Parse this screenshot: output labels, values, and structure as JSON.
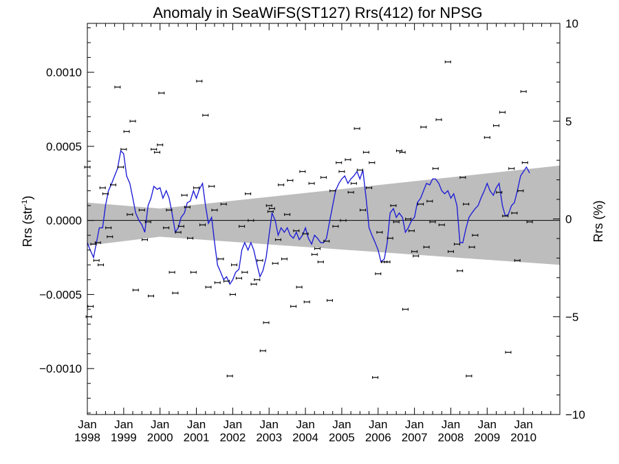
{
  "chart_data": {
    "type": "scatter",
    "title": "Anomaly in SeaWiFS(ST127) Rrs(412) for NPSG",
    "ylabel_main": "Rrs (str",
    "ylabel_sup": "-1",
    "ylabel_close": ")",
    "ylabel_right": "Rrs (%)",
    "xlim": [
      1998.0,
      2011.0
    ],
    "ylim": [
      -0.00131,
      0.00133
    ],
    "ylim_right": [
      -10,
      10
    ],
    "x_ticks": [
      {
        "x": 1998,
        "month": "Jan",
        "year": "1998"
      },
      {
        "x": 1999,
        "month": "Jan",
        "year": "1999"
      },
      {
        "x": 2000,
        "month": "Jan",
        "year": "2000"
      },
      {
        "x": 2001,
        "month": "Jan",
        "year": "2001"
      },
      {
        "x": 2002,
        "month": "Jan",
        "year": "2002"
      },
      {
        "x": 2003,
        "month": "Jan",
        "year": "2003"
      },
      {
        "x": 2004,
        "month": "Jan",
        "year": "2004"
      },
      {
        "x": 2005,
        "month": "Jan",
        "year": "2005"
      },
      {
        "x": 2006,
        "month": "Jan",
        "year": "2006"
      },
      {
        "x": 2007,
        "month": "Jan",
        "year": "2007"
      },
      {
        "x": 2008,
        "month": "Jan",
        "year": "2008"
      },
      {
        "x": 2009,
        "month": "Jan",
        "year": "2009"
      },
      {
        "x": 2010,
        "month": "Jan",
        "year": "2010"
      }
    ],
    "y_ticks_left": [
      {
        "v": 0.001,
        "label": "0.0010"
      },
      {
        "v": 0.0005,
        "label": "0.0005"
      },
      {
        "v": 0.0,
        "label": "0.0000"
      },
      {
        "v": -0.0005,
        "label": "−0.0005"
      },
      {
        "v": -0.001,
        "label": "−0.0010"
      }
    ],
    "y_ticks_right": [
      {
        "v": 10,
        "label": "10"
      },
      {
        "v": 5,
        "label": "5"
      },
      {
        "v": 0,
        "label": "0"
      },
      {
        "v": -5,
        "label": "−5"
      },
      {
        "v": -10,
        "label": "−10"
      }
    ],
    "band": {
      "upper": [
        [
          1998.0,
          0.00012
        ],
        [
          2000.0,
          8e-05
        ],
        [
          2011.0,
          0.00037
        ]
      ],
      "lower": [
        [
          1998.0,
          -0.00017
        ],
        [
          2000.0,
          -0.00011
        ],
        [
          2011.0,
          -0.0003
        ]
      ]
    },
    "points": [
      [
        1998.0,
        0.00036
      ],
      [
        1998.04,
        -0.00065
      ],
      [
        1998.09,
        -0.00058
      ],
      [
        1998.17,
        -0.00016
      ],
      [
        1998.25,
        -0.00027
      ],
      [
        1998.29,
        -0.00015
      ],
      [
        1998.37,
        -0.0003
      ],
      [
        1998.42,
        0.00022
      ],
      [
        1998.5,
        0.00018
      ],
      [
        1998.58,
        -5e-05
      ],
      [
        1998.62,
        -0.00011
      ],
      [
        1998.71,
        0.00024
      ],
      [
        1998.83,
        0.0009
      ],
      [
        1998.92,
        0.00036
      ],
      [
        1999.0,
        0.00048
      ],
      [
        1999.08,
        0.0006
      ],
      [
        1999.17,
        4e-05
      ],
      [
        1999.25,
        0.00067
      ],
      [
        1999.33,
        -0.00047
      ],
      [
        1999.5,
        7e-05
      ],
      [
        1999.58,
        -0.00013
      ],
      [
        1999.67,
        -1e-05
      ],
      [
        1999.75,
        -0.00051
      ],
      [
        1999.83,
        0.00048
      ],
      [
        1999.92,
        0.00046
      ],
      [
        2000.0,
        0.00051
      ],
      [
        2000.04,
        0.00086
      ],
      [
        2000.17,
        -5e-05
      ],
      [
        2000.25,
        7e-05
      ],
      [
        2000.33,
        -0.00035
      ],
      [
        2000.42,
        -0.00049
      ],
      [
        2000.5,
        -8e-05
      ],
      [
        2000.58,
        -4e-05
      ],
      [
        2000.67,
        0.00017
      ],
      [
        2000.75,
        9e-05
      ],
      [
        2000.83,
        -0.00012
      ],
      [
        2000.92,
        -0.00035
      ],
      [
        2001.0,
        0.00022
      ],
      [
        2001.08,
        0.00094
      ],
      [
        2001.17,
        -3e-05
      ],
      [
        2001.25,
        0.00071
      ],
      [
        2001.33,
        -0.00045
      ],
      [
        2001.42,
        0.00023
      ],
      [
        2001.5,
        7e-05
      ],
      [
        2001.58,
        -0.00042
      ],
      [
        2001.67,
        -0.00026
      ],
      [
        2001.75,
        0.00011
      ],
      [
        2001.83,
        -0.00041
      ],
      [
        2001.92,
        -0.00105
      ],
      [
        2002.0,
        -0.0005
      ],
      [
        2002.04,
        -0.0003
      ],
      [
        2002.17,
        -0.00039
      ],
      [
        2002.25,
        -4e-05
      ],
      [
        2002.33,
        -0.00035
      ],
      [
        2002.42,
        0.00018
      ],
      [
        2002.5,
        0.0
      ],
      [
        2002.58,
        -0.00043
      ],
      [
        2002.67,
        -0.0004
      ],
      [
        2002.75,
        -0.00027
      ],
      [
        2002.83,
        -0.00088
      ],
      [
        2002.92,
        -0.00069
      ],
      [
        2003.0,
        0.0001
      ],
      [
        2003.04,
        6e-05
      ],
      [
        2003.08,
        8e-05
      ],
      [
        2003.17,
        -0.00029
      ],
      [
        2003.25,
        -0.00013
      ],
      [
        2003.33,
        0.00024
      ],
      [
        2003.42,
        -0.00026
      ],
      [
        2003.5,
        4e-05
      ],
      [
        2003.58,
        0.00027
      ],
      [
        2003.67,
        -0.00058
      ],
      [
        2003.75,
        -7e-05
      ],
      [
        2003.83,
        -0.00045
      ],
      [
        2003.92,
        0.00033
      ],
      [
        2004.0,
        -9e-05
      ],
      [
        2004.04,
        -0.00055
      ],
      [
        2004.17,
        0.00025
      ],
      [
        2004.25,
        -0.00023
      ],
      [
        2004.33,
        -0.00019
      ],
      [
        2004.42,
        -0.00028
      ],
      [
        2004.5,
        0.00029
      ],
      [
        2004.58,
        -0.00014
      ],
      [
        2004.67,
        -0.00054
      ],
      [
        2004.75,
        0.0002
      ],
      [
        2004.83,
        -4e-05
      ],
      [
        2004.92,
        0.00039
      ],
      [
        2005.0,
        0.00033
      ],
      [
        2005.04,
        0.0
      ],
      [
        2005.17,
        0.00041
      ],
      [
        2005.25,
        0.00019
      ],
      [
        2005.33,
        0.00025
      ],
      [
        2005.42,
        0.00062
      ],
      [
        2005.5,
        0.00034
      ],
      [
        2005.58,
        7e-05
      ],
      [
        2005.67,
        0.00046
      ],
      [
        2005.75,
        0.00022
      ],
      [
        2005.83,
        0.00039
      ],
      [
        2005.92,
        -0.00106
      ],
      [
        2006.0,
        -0.00036
      ],
      [
        2006.04,
        -8e-05
      ],
      [
        2006.17,
        -0.00028
      ],
      [
        2006.25,
        -0.00028
      ],
      [
        2006.33,
        -0.00012
      ],
      [
        2006.42,
        0.0001
      ],
      [
        2006.5,
        -1e-05
      ],
      [
        2006.58,
        0.00047
      ],
      [
        2006.67,
        0.00046
      ],
      [
        2006.75,
        -0.0006
      ],
      [
        2006.83,
        1e-05
      ],
      [
        2006.92,
        -7e-05
      ],
      [
        2007.0,
        -0.00021
      ],
      [
        2007.04,
        -0.00024
      ],
      [
        2007.17,
        0.00011
      ],
      [
        2007.25,
        0.00063
      ],
      [
        2007.33,
        -0.00018
      ],
      [
        2007.42,
        0.00013
      ],
      [
        2007.5,
        -1e-05
      ],
      [
        2007.58,
        0.00035
      ],
      [
        2007.67,
        0.00068
      ],
      [
        2007.75,
        -3e-05
      ],
      [
        2007.92,
        0.00107
      ],
      [
        2008.0,
        -0.00021
      ],
      [
        2008.17,
        -0.00016
      ],
      [
        2008.25,
        -0.00034
      ],
      [
        2008.33,
        0.00029
      ],
      [
        2008.42,
        0.00011
      ],
      [
        2008.5,
        -0.00105
      ],
      [
        2008.58,
        -0.00018
      ],
      [
        2008.67,
        -0.0001
      ],
      [
        2009.0,
        0.00056
      ],
      [
        2009.25,
        0.00064
      ],
      [
        2009.33,
        0.00019
      ],
      [
        2009.42,
        0.00073
      ],
      [
        2009.5,
        3e-05
      ],
      [
        2009.58,
        -0.00089
      ],
      [
        2009.67,
        0.00035
      ],
      [
        2009.75,
        5e-05
      ],
      [
        2009.83,
        -0.00027
      ],
      [
        2009.92,
        0.0002
      ],
      [
        2010.0,
        0.00087
      ],
      [
        2010.04,
        0.00039
      ],
      [
        2010.17,
        -1e-05
      ]
    ],
    "line": [
      [
        1998.0,
        -0.00015
      ],
      [
        1998.08,
        -0.0002
      ],
      [
        1998.17,
        -0.00025
      ],
      [
        1998.25,
        -0.00015
      ],
      [
        1998.33,
        -5e-05
      ],
      [
        1998.42,
        -5e-05
      ],
      [
        1998.5,
        0.0001
      ],
      [
        1998.58,
        0.0002
      ],
      [
        1998.67,
        0.00025
      ],
      [
        1998.75,
        0.0003
      ],
      [
        1998.83,
        0.00035
      ],
      [
        1998.92,
        0.00047
      ],
      [
        1999.0,
        0.00045
      ],
      [
        1999.08,
        0.0003
      ],
      [
        1999.17,
        0.00025
      ],
      [
        1999.25,
        0.00015
      ],
      [
        1999.33,
        5e-05
      ],
      [
        1999.42,
        0.0
      ],
      [
        1999.5,
        -3e-05
      ],
      [
        1999.58,
        -8e-05
      ],
      [
        1999.67,
        0.0001
      ],
      [
        1999.75,
        0.00015
      ],
      [
        1999.83,
        0.00023
      ],
      [
        1999.92,
        0.00021
      ],
      [
        2000.0,
        0.00022
      ],
      [
        2000.08,
        0.00015
      ],
      [
        2000.17,
        0.0002
      ],
      [
        2000.25,
        0.00015
      ],
      [
        2000.33,
        5e-05
      ],
      [
        2000.42,
        -8e-05
      ],
      [
        2000.5,
        -5e-05
      ],
      [
        2000.58,
        2e-05
      ],
      [
        2000.67,
        5e-05
      ],
      [
        2000.75,
        0.00012
      ],
      [
        2000.83,
        0.00013
      ],
      [
        2000.92,
        0.0002
      ],
      [
        2001.0,
        0.00015
      ],
      [
        2001.08,
        0.00021
      ],
      [
        2001.17,
        0.00025
      ],
      [
        2001.25,
        0.0001
      ],
      [
        2001.33,
        -2e-05
      ],
      [
        2001.42,
        2e-05
      ],
      [
        2001.5,
        -0.00015
      ],
      [
        2001.58,
        -0.0003
      ],
      [
        2001.67,
        -0.00035
      ],
      [
        2001.75,
        -0.0004
      ],
      [
        2001.83,
        -0.00038
      ],
      [
        2001.92,
        -0.00043
      ],
      [
        2002.0,
        -0.0004
      ],
      [
        2002.08,
        -0.00035
      ],
      [
        2002.17,
        -0.00033
      ],
      [
        2002.25,
        -0.0002
      ],
      [
        2002.33,
        -0.00015
      ],
      [
        2002.42,
        -0.0002
      ],
      [
        2002.5,
        -0.00015
      ],
      [
        2002.58,
        -0.0002
      ],
      [
        2002.67,
        -0.0003
      ],
      [
        2002.75,
        -0.00038
      ],
      [
        2002.83,
        -0.00034
      ],
      [
        2002.92,
        -0.00025
      ],
      [
        2003.0,
        -0.0001
      ],
      [
        2003.08,
        5e-05
      ],
      [
        2003.17,
        0.0
      ],
      [
        2003.25,
        -0.0001
      ],
      [
        2003.33,
        -5e-05
      ],
      [
        2003.42,
        -8e-05
      ],
      [
        2003.5,
        -5e-05
      ],
      [
        2003.58,
        -0.0001
      ],
      [
        2003.67,
        -0.00012
      ],
      [
        2003.75,
        -8e-05
      ],
      [
        2003.83,
        -0.00013
      ],
      [
        2003.92,
        -0.0001
      ],
      [
        2004.0,
        -5e-05
      ],
      [
        2004.08,
        -0.00012
      ],
      [
        2004.17,
        -0.00016
      ],
      [
        2004.25,
        -0.0001
      ],
      [
        2004.33,
        -0.00012
      ],
      [
        2004.42,
        -0.00015
      ],
      [
        2004.5,
        -0.00015
      ],
      [
        2004.58,
        -0.00012
      ],
      [
        2004.67,
        0.0
      ],
      [
        2004.75,
        0.0001
      ],
      [
        2004.83,
        0.0002
      ],
      [
        2004.92,
        0.00025
      ],
      [
        2005.0,
        0.00028
      ],
      [
        2005.08,
        0.0003
      ],
      [
        2005.17,
        0.00025
      ],
      [
        2005.25,
        0.00028
      ],
      [
        2005.33,
        0.0003
      ],
      [
        2005.42,
        0.00033
      ],
      [
        2005.5,
        0.00028
      ],
      [
        2005.58,
        0.00034
      ],
      [
        2005.67,
        0.00015
      ],
      [
        2005.75,
        -5e-05
      ],
      [
        2005.83,
        -0.0001
      ],
      [
        2005.92,
        -0.00015
      ],
      [
        2006.0,
        -0.0002
      ],
      [
        2006.08,
        -0.00028
      ],
      [
        2006.17,
        -0.00026
      ],
      [
        2006.25,
        -0.00015
      ],
      [
        2006.33,
        5e-05
      ],
      [
        2006.42,
        8e-05
      ],
      [
        2006.5,
        2e-05
      ],
      [
        2006.58,
        5e-05
      ],
      [
        2006.67,
        2e-05
      ],
      [
        2006.75,
        -8e-05
      ],
      [
        2006.83,
        -5e-05
      ],
      [
        2006.92,
        0.0
      ],
      [
        2007.0,
        2e-05
      ],
      [
        2007.08,
        0.00012
      ],
      [
        2007.17,
        0.00015
      ],
      [
        2007.25,
        0.0002
      ],
      [
        2007.33,
        0.00025
      ],
      [
        2007.42,
        0.00024
      ],
      [
        2007.5,
        0.00028
      ],
      [
        2007.58,
        0.00028
      ],
      [
        2007.67,
        0.00025
      ],
      [
        2007.75,
        0.0002
      ],
      [
        2007.83,
        0.00018
      ],
      [
        2007.92,
        0.0002
      ],
      [
        2008.0,
        0.00015
      ],
      [
        2008.08,
        0.00018
      ],
      [
        2008.17,
        0.0001
      ],
      [
        2008.25,
        -0.00015
      ],
      [
        2008.33,
        -0.00015
      ],
      [
        2008.42,
        -5e-05
      ],
      [
        2008.5,
        2e-05
      ],
      [
        2008.58,
        5e-05
      ],
      [
        2008.67,
        8e-05
      ],
      [
        2008.75,
        0.0001
      ],
      [
        2008.83,
        0.00015
      ],
      [
        2008.92,
        0.0002
      ],
      [
        2009.0,
        0.00025
      ],
      [
        2009.08,
        0.0002
      ],
      [
        2009.17,
        0.00017
      ],
      [
        2009.25,
        0.00022
      ],
      [
        2009.33,
        0.00025
      ],
      [
        2009.42,
        0.0001
      ],
      [
        2009.5,
        3e-05
      ],
      [
        2009.58,
        4e-05
      ],
      [
        2009.67,
        0.0001
      ],
      [
        2009.75,
        0.00012
      ],
      [
        2009.83,
        0.0002
      ],
      [
        2009.92,
        0.0003
      ],
      [
        2010.0,
        0.00033
      ],
      [
        2010.08,
        0.00036
      ],
      [
        2010.17,
        0.00032
      ]
    ]
  },
  "colors": {
    "line": "#1f1fd6",
    "band": "#bdbdbd",
    "axis": "#000000",
    "points": "#000000"
  }
}
